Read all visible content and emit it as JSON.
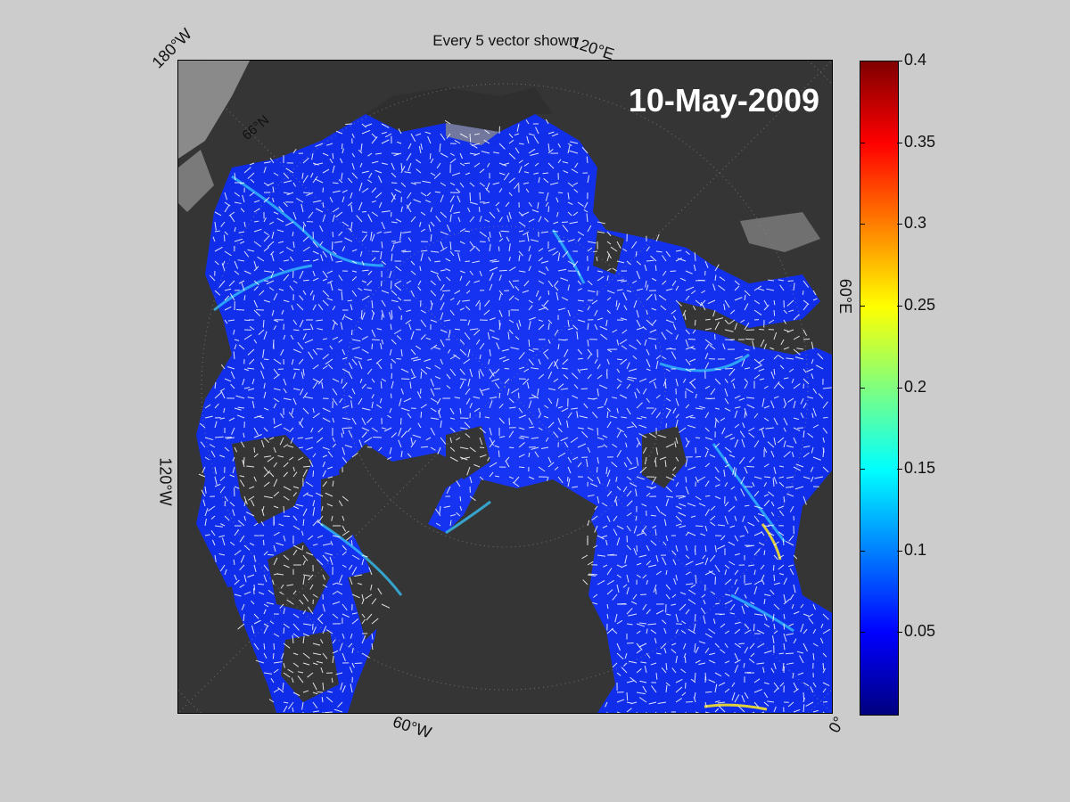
{
  "figure": {
    "title": "Every 5 vector shown",
    "date": "10-May-2009",
    "lat_label": "66°N",
    "lon_labels": {
      "w180": "180°W",
      "e120": "120°E",
      "e60": "60°E",
      "w120": "120°W",
      "w60": "60°W",
      "zero": "0°"
    }
  },
  "colorbar": {
    "min": 0,
    "max": 0.4,
    "colormap": "jet",
    "ticks": [
      "0.05",
      "0.1",
      "0.15",
      "0.2",
      "0.25",
      "0.3",
      "0.35",
      "0.4"
    ]
  },
  "colors": {
    "background": "#cccccc",
    "land": "#353535",
    "coast_gray": "#8a8a8a",
    "ice_field": "#1533f0",
    "vectors": "#ffffff"
  }
}
